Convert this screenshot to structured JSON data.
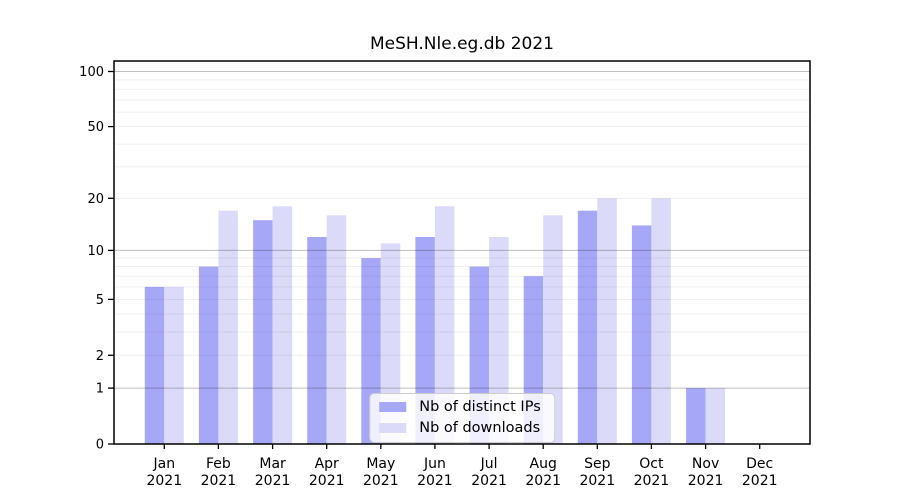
{
  "chart_data": {
    "type": "bar",
    "title": "MeSH.Nle.eg.db 2021",
    "categories": [
      "Jan 2021",
      "Feb 2021",
      "Mar 2021",
      "Apr 2021",
      "May 2021",
      "Jun 2021",
      "Jul 2021",
      "Aug 2021",
      "Sep 2021",
      "Oct 2021",
      "Nov 2021",
      "Dec 2021"
    ],
    "x_tick_labels": [
      {
        "line1": "Jan",
        "line2": "2021"
      },
      {
        "line1": "Feb",
        "line2": "2021"
      },
      {
        "line1": "Mar",
        "line2": "2021"
      },
      {
        "line1": "Apr",
        "line2": "2021"
      },
      {
        "line1": "May",
        "line2": "2021"
      },
      {
        "line1": "Jun",
        "line2": "2021"
      },
      {
        "line1": "Jul",
        "line2": "2021"
      },
      {
        "line1": "Aug",
        "line2": "2021"
      },
      {
        "line1": "Sep",
        "line2": "2021"
      },
      {
        "line1": "Oct",
        "line2": "2021"
      },
      {
        "line1": "Nov",
        "line2": "2021"
      },
      {
        "line1": "Dec",
        "line2": "2021"
      }
    ],
    "series": [
      {
        "name": "Nb of distinct IPs",
        "color": "#a7a7f7",
        "values": [
          6,
          8,
          15,
          12,
          9,
          12,
          8,
          7,
          17,
          14,
          1,
          0
        ]
      },
      {
        "name": "Nb of downloads",
        "color": "#dbdbf9",
        "values": [
          6,
          17,
          18,
          16,
          11,
          18,
          12,
          16,
          20,
          20,
          1,
          0
        ]
      }
    ],
    "y_scale": "log1p",
    "y_ticks": [
      0,
      1,
      2,
      5,
      10,
      20,
      50,
      100
    ],
    "y_major_gridlines": [
      1,
      10,
      100
    ],
    "y_minor_gridlines": [
      2,
      3,
      4,
      5,
      6,
      7,
      8,
      9,
      20,
      30,
      40,
      50,
      60,
      70,
      80,
      90
    ],
    "ylim": [
      0,
      114
    ],
    "grid": true,
    "legend_position": "lower center",
    "style": {
      "major_grid_color": "rgba(0,0,0,0.26)",
      "minor_grid_color": "rgba(0,0,0,0.07)",
      "spine_color": "#000000",
      "tick_color": "#000000",
      "label_color": "#000000"
    }
  }
}
